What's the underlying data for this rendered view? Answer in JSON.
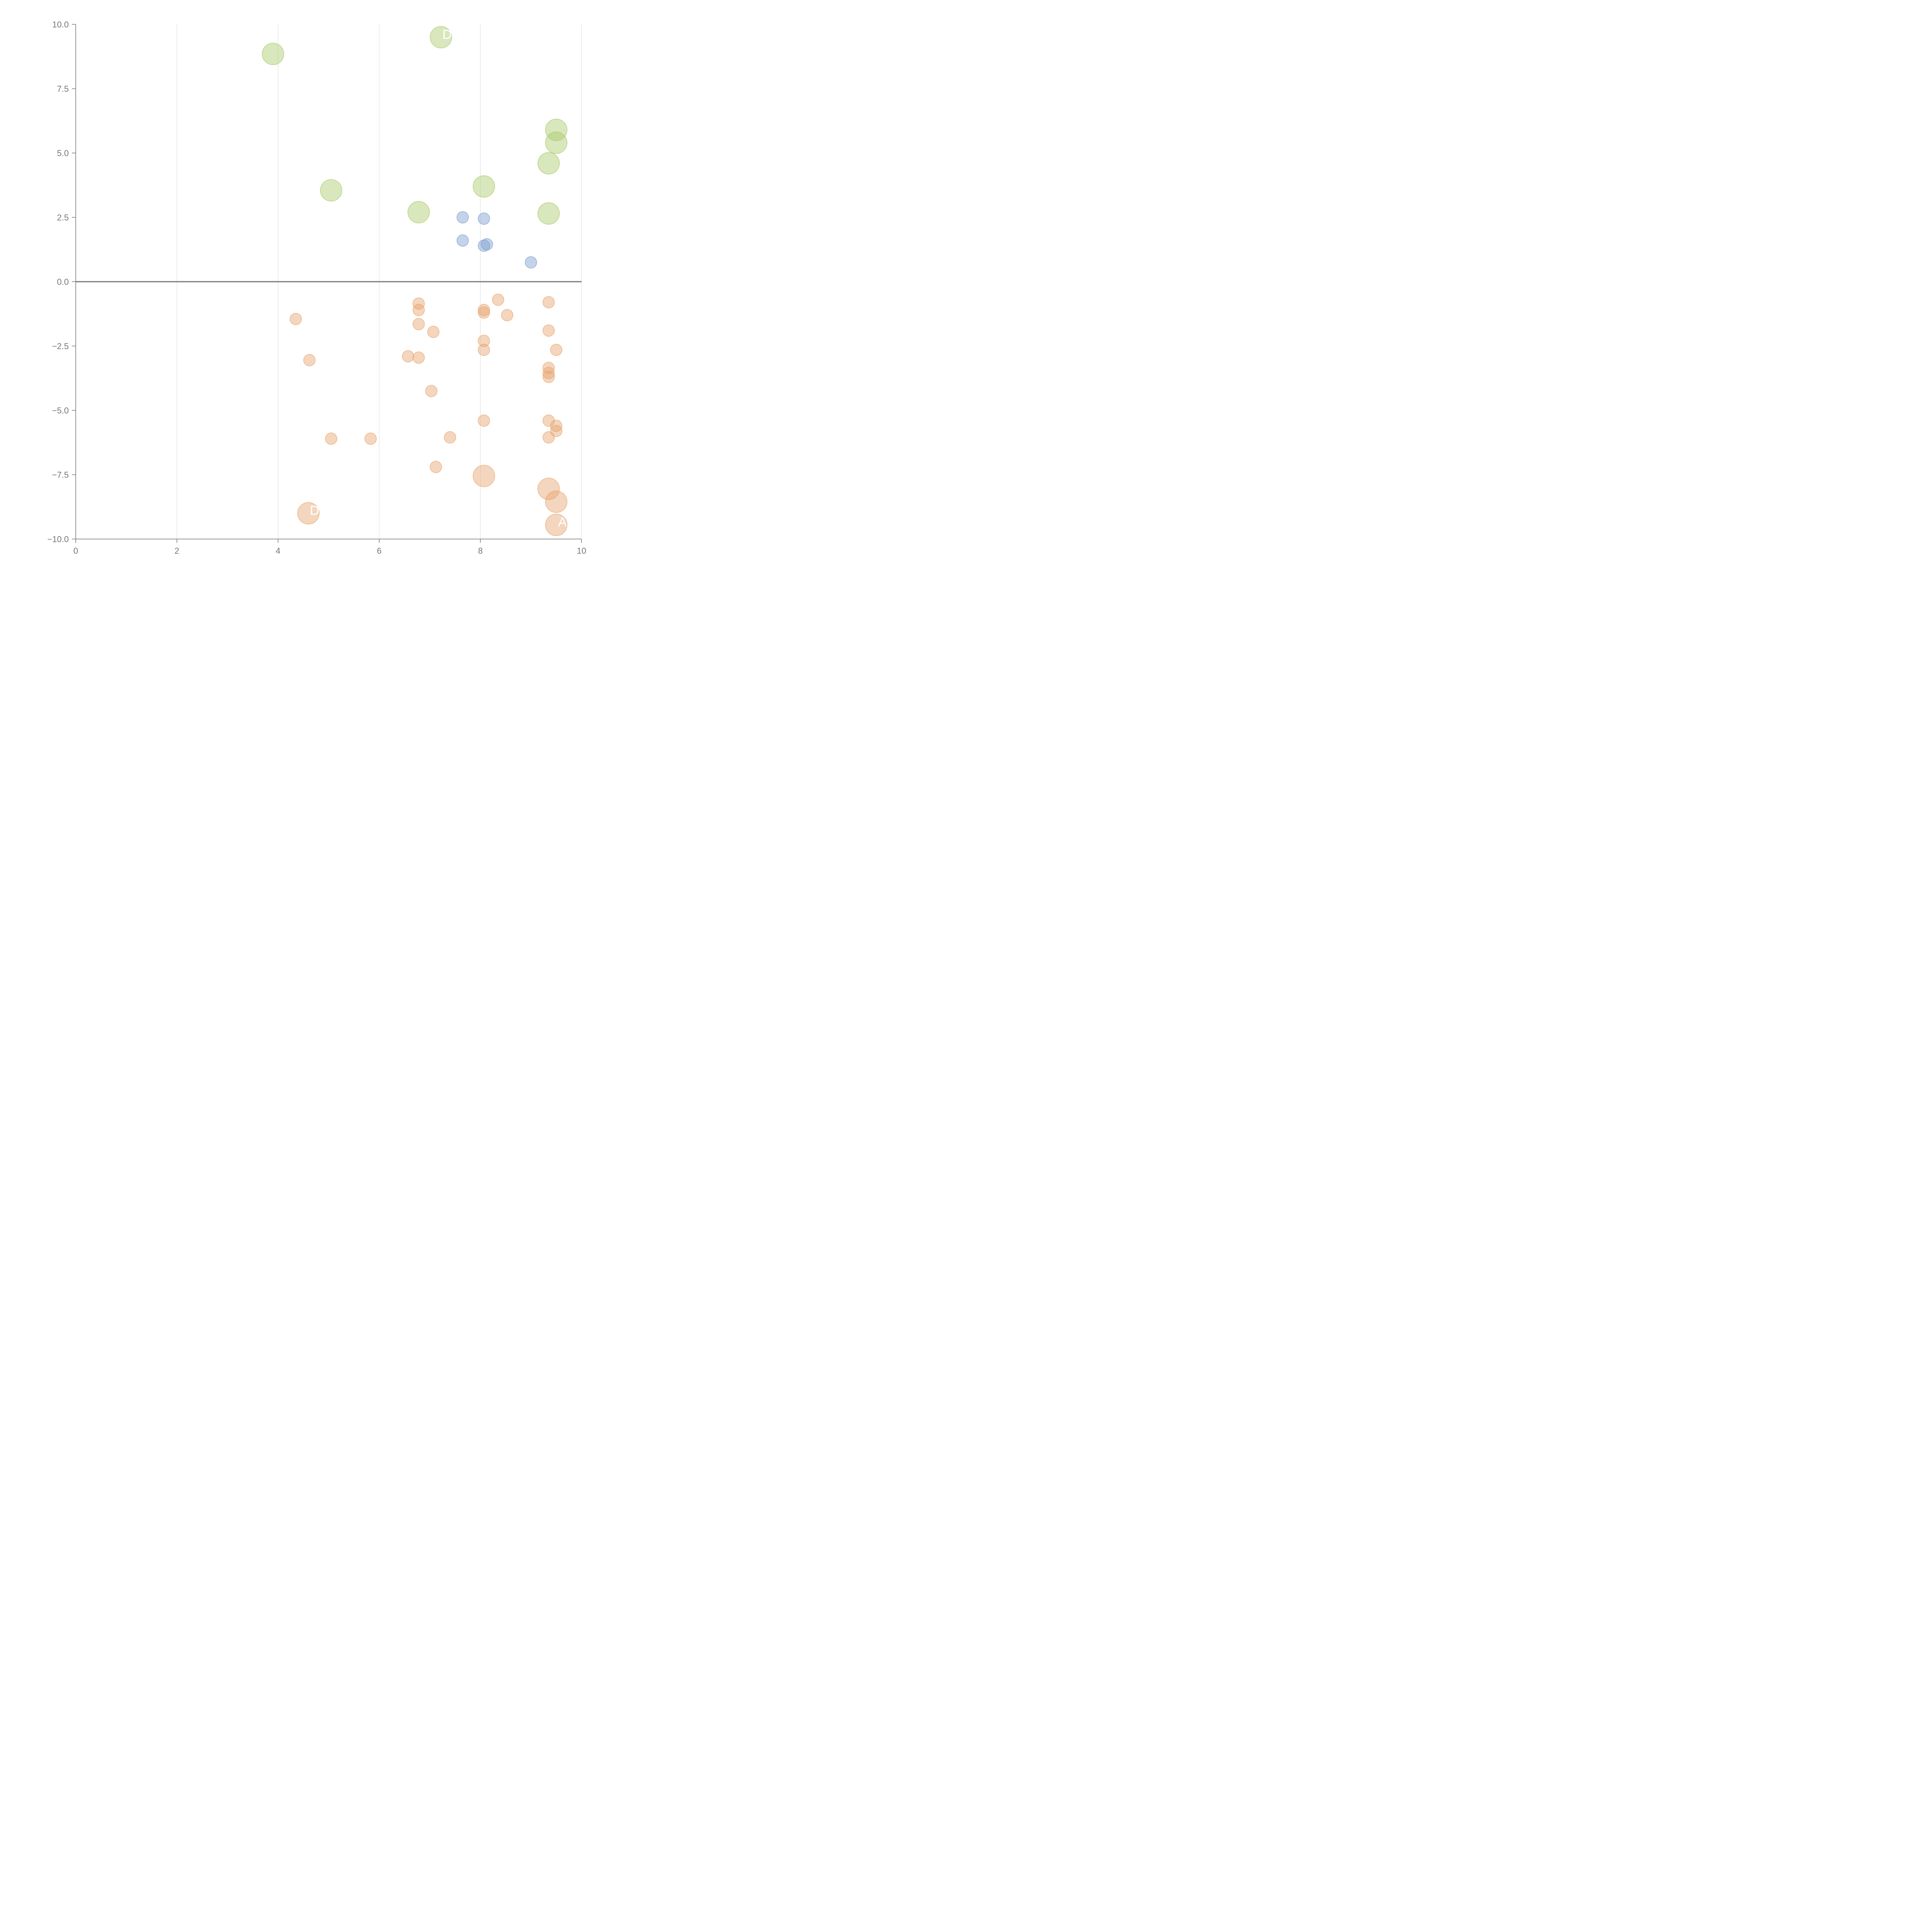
{
  "chart_data": {
    "type": "scatter",
    "title": "",
    "xlabel": "",
    "ylabel": "",
    "xlim": [
      0,
      10
    ],
    "ylim": [
      -10,
      10
    ],
    "x_ticks": [
      0,
      2,
      4,
      6,
      8,
      10
    ],
    "x_tick_labels": [
      "0",
      "2",
      "4",
      "6",
      "8",
      "10"
    ],
    "y_ticks": [
      -10,
      -7.5,
      -5,
      -2.5,
      0,
      2.5,
      5,
      7.5,
      10
    ],
    "y_tick_labels": [
      "−10.0",
      "−7.5",
      "−5.0",
      "−2.5",
      "0.0",
      "2.5",
      "5.0",
      "7.5",
      "10.0"
    ],
    "vertical_grid": true,
    "horizontal_grid": false,
    "zero_line": true,
    "series": [
      {
        "name": "green",
        "color": "#a9c96b",
        "size": "large",
        "points": [
          {
            "x": 3.9,
            "y": 8.85
          },
          {
            "x": 7.22,
            "y": 9.5,
            "label": "D"
          },
          {
            "x": 9.5,
            "y": 5.9
          },
          {
            "x": 9.5,
            "y": 5.4
          },
          {
            "x": 9.35,
            "y": 4.6
          },
          {
            "x": 5.05,
            "y": 3.55
          },
          {
            "x": 8.07,
            "y": 3.7
          },
          {
            "x": 6.78,
            "y": 2.7
          },
          {
            "x": 9.35,
            "y": 2.65
          }
        ]
      },
      {
        "name": "blue",
        "color": "#7c9dcf",
        "size": "small",
        "points": [
          {
            "x": 7.65,
            "y": 2.5
          },
          {
            "x": 8.07,
            "y": 2.45
          },
          {
            "x": 7.65,
            "y": 1.6
          },
          {
            "x": 8.07,
            "y": 1.4
          },
          {
            "x": 8.13,
            "y": 1.45
          },
          {
            "x": 9.0,
            "y": 0.75
          }
        ]
      },
      {
        "name": "orange",
        "color": "#e7a56f",
        "size": "small",
        "points": [
          {
            "x": 8.35,
            "y": -0.7
          },
          {
            "x": 6.78,
            "y": -0.85
          },
          {
            "x": 9.35,
            "y": -0.8
          },
          {
            "x": 6.78,
            "y": -1.1
          },
          {
            "x": 8.07,
            "y": -1.1
          },
          {
            "x": 8.07,
            "y": -1.2
          },
          {
            "x": 8.53,
            "y": -1.3
          },
          {
            "x": 4.35,
            "y": -1.45
          },
          {
            "x": 6.78,
            "y": -1.65
          },
          {
            "x": 9.35,
            "y": -1.9
          },
          {
            "x": 7.07,
            "y": -1.95
          },
          {
            "x": 8.07,
            "y": -2.3
          },
          {
            "x": 8.07,
            "y": -2.65
          },
          {
            "x": 9.5,
            "y": -2.65
          },
          {
            "x": 6.57,
            "y": -2.9
          },
          {
            "x": 6.78,
            "y": -2.95
          },
          {
            "x": 4.62,
            "y": -3.05
          },
          {
            "x": 9.35,
            "y": -3.35
          },
          {
            "x": 9.35,
            "y": -3.55
          },
          {
            "x": 9.35,
            "y": -3.7
          },
          {
            "x": 7.03,
            "y": -4.25
          },
          {
            "x": 8.07,
            "y": -5.4
          },
          {
            "x": 9.35,
            "y": -5.4
          },
          {
            "x": 9.5,
            "y": -5.6
          },
          {
            "x": 9.5,
            "y": -5.8
          },
          {
            "x": 5.05,
            "y": -6.1
          },
          {
            "x": 5.83,
            "y": -6.1
          },
          {
            "x": 7.4,
            "y": -6.05
          },
          {
            "x": 9.35,
            "y": -6.05
          },
          {
            "x": 7.12,
            "y": -7.2
          },
          {
            "x": 8.07,
            "y": -7.55,
            "big": true
          },
          {
            "x": 9.35,
            "y": -8.05,
            "big": true
          },
          {
            "x": 9.5,
            "y": -8.55,
            "big": true
          },
          {
            "x": 4.6,
            "y": -9.0,
            "big": true,
            "label": "D"
          },
          {
            "x": 9.5,
            "y": -9.45,
            "big": true,
            "label": "A"
          }
        ]
      }
    ]
  }
}
